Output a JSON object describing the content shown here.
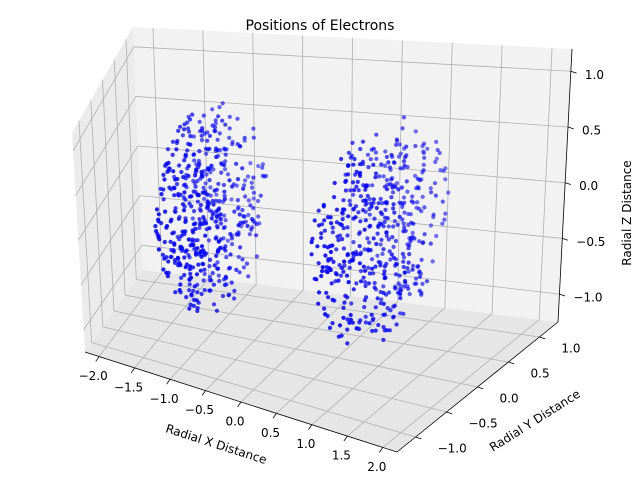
{
  "chart_data": {
    "type": "scatter",
    "projection": "3d",
    "title": "Positions of Electrons",
    "xlabel": "Radial X Distance",
    "ylabel": "Radial Y Distance",
    "zlabel": "Radial Z Distance",
    "xlim": [
      -2.2,
      2.2
    ],
    "ylim": [
      -1.3,
      1.3
    ],
    "zlim": [
      -1.25,
      1.2
    ],
    "xticks": [
      -2.0,
      -1.5,
      -1.0,
      -0.5,
      0.0,
      0.5,
      1.0,
      1.5,
      2.0
    ],
    "xtick_labels": [
      "−2.0",
      "−1.5",
      "−1.0",
      "−0.5",
      "0.0",
      "0.5",
      "1.0",
      "1.5",
      "2.0"
    ],
    "yticks": [
      -1.0,
      -0.5,
      0.0,
      0.5,
      1.0
    ],
    "ytick_labels": [
      "−1.0",
      "−0.5",
      "0.0",
      "0.5",
      "1.0"
    ],
    "zticks": [
      -1.0,
      -0.5,
      0.0,
      0.5,
      1.0
    ],
    "ztick_labels": [
      "−1.0",
      "−0.5",
      "0.0",
      "0.5",
      "1.0"
    ],
    "grid": true,
    "marker_color": "#0000ff",
    "series": [
      {
        "clusters": [
          {
            "center": [
              -1.0,
              0.0,
              0.0
            ],
            "radius": 1.0,
            "count": 500,
            "seed": 11
          },
          {
            "center": [
              1.0,
              0.0,
              0.0
            ],
            "radius": 1.0,
            "count": 500,
            "seed": 29
          }
        ]
      }
    ]
  }
}
